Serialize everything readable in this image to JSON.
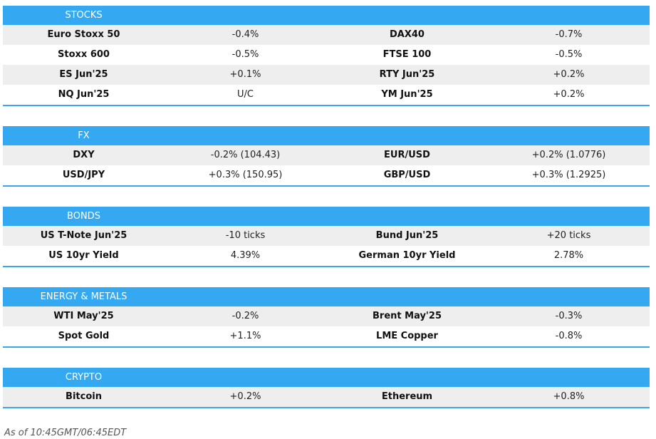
{
  "sections": [
    {
      "title": "STOCKS",
      "rows": [
        [
          "Euro Stoxx 50",
          "-0.4%",
          "DAX40",
          "-0.7%"
        ],
        [
          "Stoxx 600",
          "-0.5%",
          "FTSE 100",
          "-0.5%"
        ],
        [
          "ES Jun'25",
          "+0.1%",
          "RTY Jun'25",
          "+0.2%"
        ],
        [
          "NQ Jun'25",
          "U/C",
          "YM Jun'25",
          "+0.2%"
        ]
      ]
    },
    {
      "title": "FX",
      "rows": [
        [
          "DXY",
          "-0.2% (104.43)",
          "EUR/USD",
          "+0.2% (1.0776)"
        ],
        [
          "USD/JPY",
          "+0.3% (150.95)",
          "GBP/USD",
          "+0.3% (1.2925)"
        ]
      ]
    },
    {
      "title": "BONDS",
      "rows": [
        [
          "US T-Note Jun'25",
          "-10 ticks",
          "Bund Jun'25",
          "+20 ticks"
        ],
        [
          "US 10yr Yield",
          "4.39%",
          "German 10yr Yield",
          "2.78%"
        ]
      ]
    },
    {
      "title": "ENERGY & METALS",
      "rows": [
        [
          "WTI May'25",
          "-0.2%",
          "Brent May'25",
          "-0.3%"
        ],
        [
          "Spot Gold",
          "+1.1%",
          "LME Copper",
          "-0.8%"
        ]
      ]
    },
    {
      "title": "CRYPTO",
      "rows": [
        [
          "Bitcoin",
          "+0.2%",
          "Ethereum",
          "+0.8%"
        ]
      ]
    }
  ],
  "footer": "As of 10:45GMT/06:45EDT"
}
